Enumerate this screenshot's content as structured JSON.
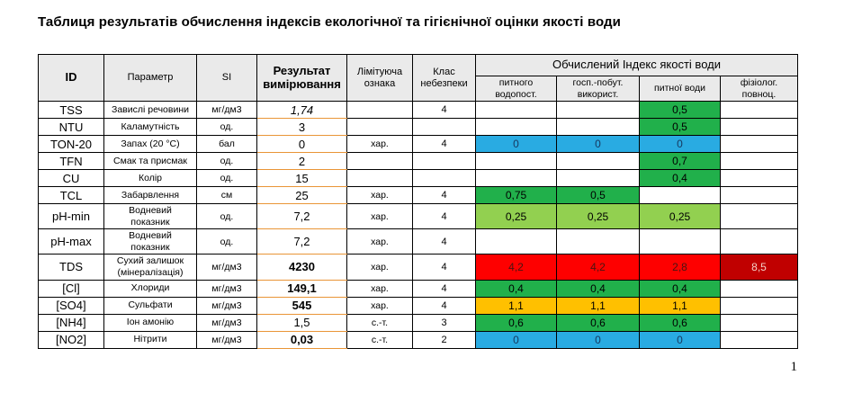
{
  "title": "Таблиця результатів обчислення індексів екологічної та гігієнічної оцінки якості води",
  "page_number": "1",
  "table": {
    "columns": {
      "id": "ID",
      "param": "Параметр",
      "si": "SI",
      "result": "Результат вимірювання",
      "limit": "Лімітуюча ознака",
      "hazard": "Клас небезпеки"
    },
    "index_group": "Обчислений Індекс якості води",
    "index_columns": [
      "питного водопост.",
      "госп.-побут. використ.",
      "питної води",
      "фізіолог. повноц."
    ],
    "palette": {
      "green": {
        "bg": "#21B04B",
        "fg": "#000000"
      },
      "lightgreen": {
        "bg": "#92D050",
        "fg": "#000000"
      },
      "blue": {
        "bg": "#29ABE2",
        "fg": "#17375E"
      },
      "yellow": {
        "bg": "#FFC000",
        "fg": "#000000"
      },
      "red": {
        "bg": "#FE0000",
        "fg": "#4A1512"
      },
      "darkred": {
        "bg": "#C00000",
        "fg": "#F4CFC6"
      }
    },
    "rows": [
      {
        "id": "TSS",
        "param": "Завислі речовини",
        "si": "мг/дм3",
        "result": "1,74",
        "style": "italic",
        "limit": "",
        "hazard": "4",
        "idx": [
          null,
          null,
          {
            "v": "0,5",
            "c": "green"
          },
          null
        ]
      },
      {
        "id": "NTU",
        "param": "Каламутність",
        "si": "од.",
        "result": "3",
        "style": "normal",
        "limit": "",
        "hazard": "",
        "idx": [
          null,
          null,
          {
            "v": "0,5",
            "c": "green"
          },
          null
        ]
      },
      {
        "id": "TON-20",
        "param": "Запах (20 °C)",
        "si": "бал",
        "result": "0",
        "style": "normal",
        "limit": "хар.",
        "hazard": "4",
        "idx": [
          {
            "v": "0",
            "c": "blue"
          },
          {
            "v": "0",
            "c": "blue"
          },
          {
            "v": "0",
            "c": "blue"
          },
          null
        ]
      },
      {
        "id": "TFN",
        "param": "Смак та присмак",
        "si": "од.",
        "result": "2",
        "style": "normal",
        "limit": "",
        "hazard": "",
        "idx": [
          null,
          null,
          {
            "v": "0,7",
            "c": "green"
          },
          null
        ]
      },
      {
        "id": "CU",
        "param": "Колір",
        "si": "од.",
        "result": "15",
        "style": "normal",
        "limit": "",
        "hazard": "",
        "idx": [
          null,
          null,
          {
            "v": "0,4",
            "c": "green"
          },
          null
        ]
      },
      {
        "id": "TCL",
        "param": "Забарвлення",
        "si": "см",
        "result": "25",
        "style": "normal",
        "limit": "хар.",
        "hazard": "4",
        "idx": [
          {
            "v": "0,75",
            "c": "green"
          },
          {
            "v": "0,5",
            "c": "green"
          },
          null,
          null
        ]
      },
      {
        "id": "pH-min",
        "param": "Водневий\nпоказник",
        "si": "од.",
        "result": "7,2",
        "style": "normal",
        "limit": "хар.",
        "hazard": "4",
        "idx": [
          {
            "v": "0,25",
            "c": "lightgreen"
          },
          {
            "v": "0,25",
            "c": "lightgreen"
          },
          {
            "v": "0,25",
            "c": "lightgreen"
          },
          null
        ]
      },
      {
        "id": "pH-max",
        "param": "Водневий\nпоказник",
        "si": "од.",
        "result": "7,2",
        "style": "normal",
        "limit": "хар.",
        "hazard": "4",
        "idx": [
          null,
          null,
          null,
          null
        ]
      },
      {
        "id": "TDS",
        "param": "Сухий залишок\n(мінералізація)",
        "si": "мг/дм3",
        "result": "4230",
        "style": "bold",
        "limit": "хар.",
        "hazard": "4",
        "idx": [
          {
            "v": "4,2",
            "c": "red"
          },
          {
            "v": "4,2",
            "c": "red"
          },
          {
            "v": "2,8",
            "c": "red"
          },
          {
            "v": "8,5",
            "c": "darkred"
          }
        ]
      },
      {
        "id": "[Cl]",
        "param": "Хлориди",
        "si": "мг/дм3",
        "result": "149,1",
        "style": "bold",
        "limit": "хар.",
        "hazard": "4",
        "idx": [
          {
            "v": "0,4",
            "c": "green"
          },
          {
            "v": "0,4",
            "c": "green"
          },
          {
            "v": "0,4",
            "c": "green"
          },
          null
        ]
      },
      {
        "id": "[SO4]",
        "param": "Сульфати",
        "si": "мг/дм3",
        "result": "545",
        "style": "bold",
        "limit": "хар.",
        "hazard": "4",
        "idx": [
          {
            "v": "1,1",
            "c": "yellow"
          },
          {
            "v": "1,1",
            "c": "yellow"
          },
          {
            "v": "1,1",
            "c": "yellow"
          },
          null
        ]
      },
      {
        "id": "[NH4]",
        "param": "Іон амонію",
        "si": "мг/дм3",
        "result": "1,5",
        "style": "normal",
        "limit": "с.-т.",
        "hazard": "3",
        "idx": [
          {
            "v": "0,6",
            "c": "green"
          },
          {
            "v": "0,6",
            "c": "green"
          },
          {
            "v": "0,6",
            "c": "green"
          },
          null
        ]
      },
      {
        "id": "[NO2]",
        "param": "Нітрити",
        "si": "мг/дм3",
        "result": "0,03",
        "style": "bold",
        "limit": "с.-т.",
        "hazard": "2",
        "idx": [
          {
            "v": "0",
            "c": "blue"
          },
          {
            "v": "0",
            "c": "blue"
          },
          {
            "v": "0",
            "c": "blue"
          },
          null
        ]
      }
    ]
  }
}
